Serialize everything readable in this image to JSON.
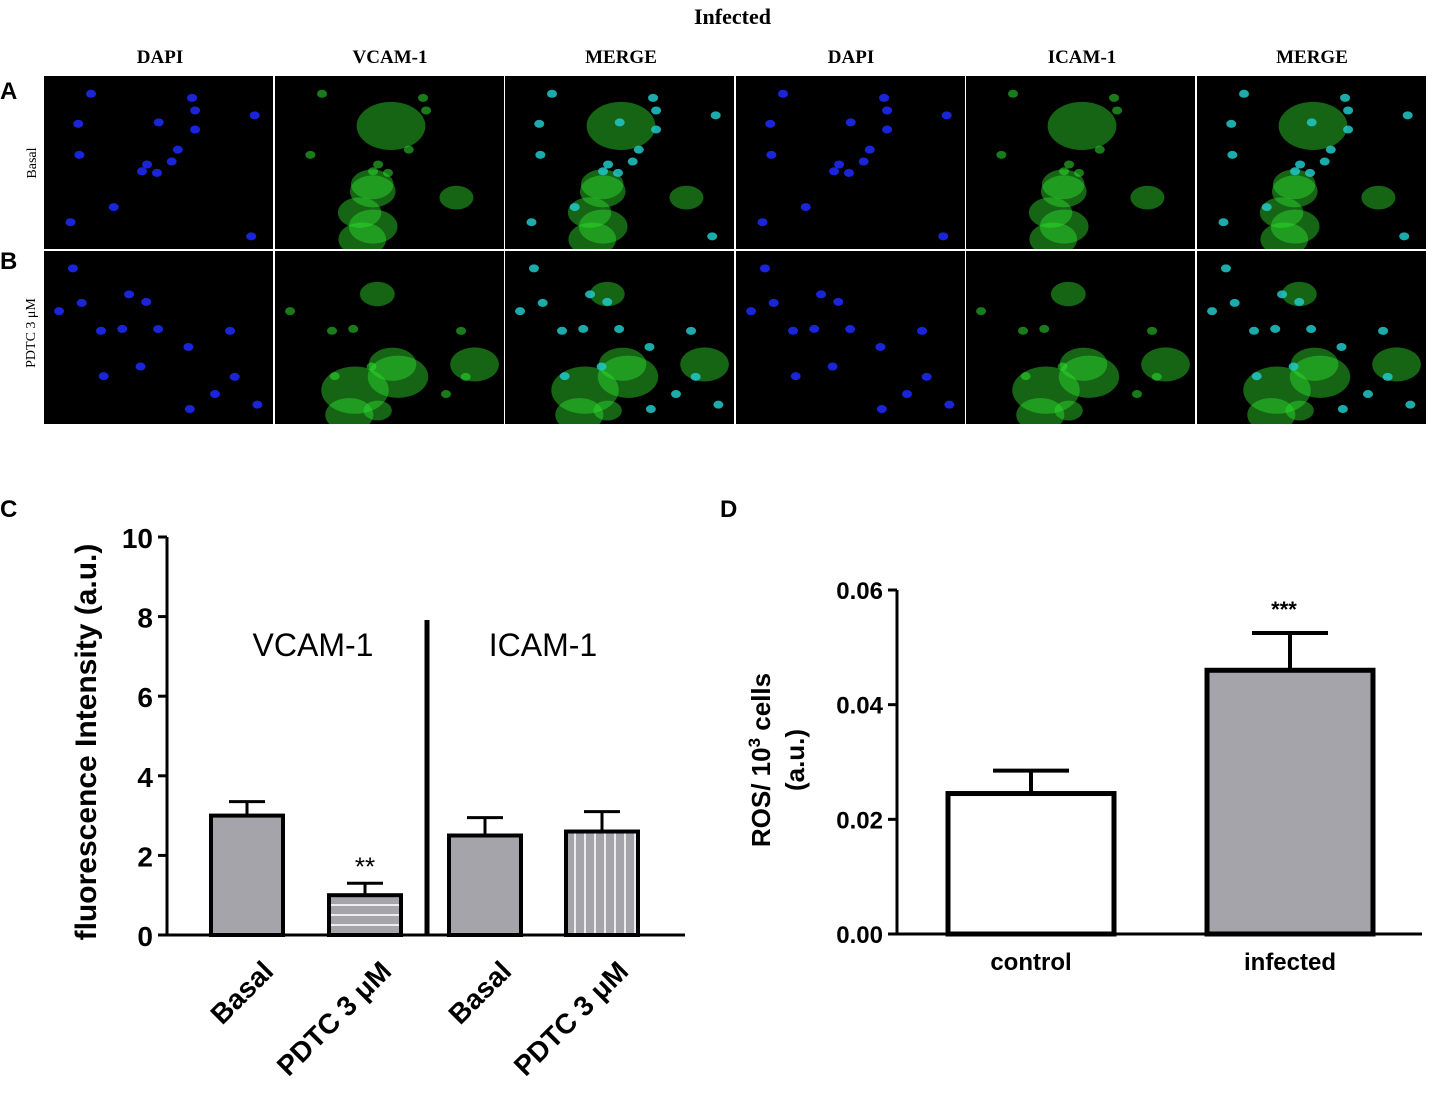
{
  "figure": {
    "top_title": "Infected",
    "panel_letters": [
      "A",
      "B",
      "C",
      "D"
    ],
    "column_labels": [
      "DAPI",
      "VCAM-1",
      "MERGE",
      "DAPI",
      "ICAM-1",
      "MERGE"
    ],
    "row_labels": [
      "Basal",
      "PDTC 3 μM"
    ],
    "channel_colors": {
      "dapi": "#1f2cff",
      "green": "#2ee02e",
      "merge": "#22c8c8"
    }
  },
  "chart_data": [
    {
      "type": "bar",
      "panel": "C",
      "ylabel": "fluorescence Intensity  (a.u.)",
      "ylim": [
        0,
        10
      ],
      "yticks": [
        "0",
        "2",
        "4",
        "6",
        "8",
        "10"
      ],
      "categories": [
        "Basal",
        "PDTC 3 μM",
        "Basal",
        "PDTC 3 μM"
      ],
      "group_labels": [
        "VCAM-1",
        "ICAM-1"
      ],
      "values": [
        3.0,
        1.0,
        2.5,
        2.6
      ],
      "errors": [
        0.35,
        0.3,
        0.45,
        0.5
      ],
      "annotations": [
        "",
        "**",
        "",
        ""
      ],
      "bar_color": "#a5a4aa",
      "patterns": [
        "solid",
        "horizontal-lines",
        "solid",
        "vertical-lines"
      ]
    },
    {
      "type": "bar",
      "panel": "D",
      "ylabel_line1": "ROS/ 10",
      "ylabel_sup": "3",
      "ylabel_line1_tail": " cells",
      "ylabel_line2": "(a.u.)",
      "ylim": [
        0,
        0.06
      ],
      "yticks": [
        "0.00",
        "0.02",
        "0.04",
        "0.06"
      ],
      "categories": [
        "control",
        "infected"
      ],
      "values": [
        0.0245,
        0.046
      ],
      "errors": [
        0.004,
        0.0065
      ],
      "annotations": [
        "",
        "***"
      ],
      "bar_colors": [
        "#ffffff",
        "#a5a4aa"
      ]
    }
  ]
}
